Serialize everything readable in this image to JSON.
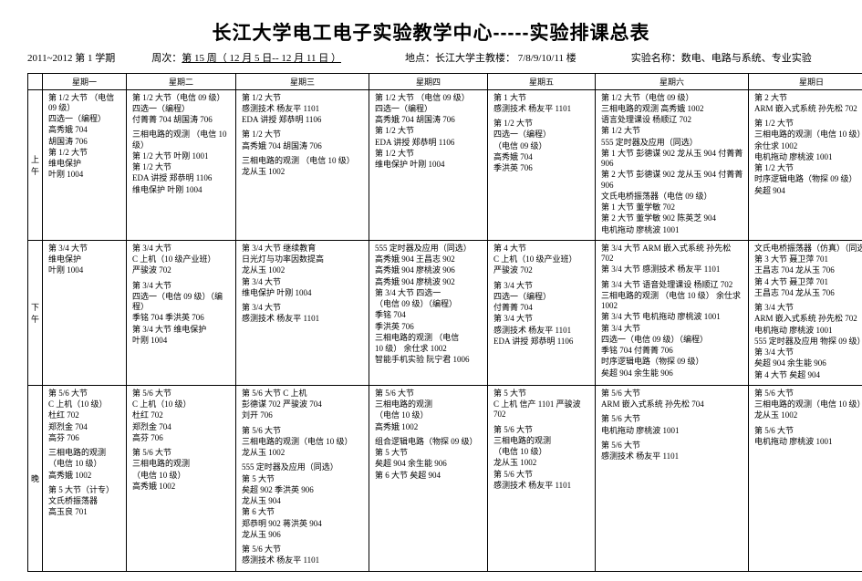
{
  "header": {
    "title": "长江大学电工电子实验教学中心-----实验排课总表",
    "title_fontsize": 21,
    "line2_left": "2011~2012  第 1 学期",
    "line2_week": "周次：",
    "line2_week_val": "第 15 周（ 12 月 5 日--   12 月 11 日 ）",
    "line2_loc_label": "地点：",
    "line2_loc": "长江大学主教楼：  7/8/9/10/11   楼",
    "line2_exp_label": "实验名称：",
    "line2_exp": "数电、电路与系统、专业实验"
  },
  "days": [
    "星期一",
    "星期二",
    "星期三",
    "星期四",
    "星期五",
    "星期六",
    "星期日"
  ],
  "sections": [
    "上午",
    "下午",
    "晚"
  ],
  "grid": [
    [
      [
        [
          "第 1/2 大节  （电信09 级）",
          "四选一（编程）",
          "高秀娥 704",
          "胡国涛 706",
          "第 1/2 大节",
          "维电保护",
          "叶刚 1004"
        ]
      ],
      [
        [
          "第 1/2 大节（电信 09 级）",
          "四选一（编程）",
          "付菁菁 704  胡国涛 706"
        ],
        [
          "三相电路的观测  （电信 10级）",
          "第 1/2 大节  叶刚 1001",
          "第 1/2 大节",
          "EDA 讲授   郑恭明 1106",
          "维电保护 叶刚 1004"
        ]
      ],
      [
        [
          "第 1/2 大节",
          "感测技术 杨友平 1101",
          "EDA 讲授  郑恭明 1106"
        ],
        [
          "第 1/2 大节",
          "高秀娥 704  胡国涛 706"
        ],
        [
          "三相电路的观测  （电信 10 级）",
          "龙从玉 1002"
        ]
      ],
      [
        [
          "第 1/2 大节  （电信 09 级）",
          "四选一（编程）",
          "高秀娥 704  胡国涛 706",
          "第 1/2 大节",
          "EDA 讲授  郑恭明 1106",
          "第 1/2 大节",
          "维电保护   叶刚 1004"
        ]
      ],
      [
        [
          "第 1 大节",
          "感测技术 杨友平 1101"
        ],
        [
          "第 1/2 大节",
          "四选一（编程）",
          "（电信 09 级）",
          "高秀娥 704",
          "季洪英 706"
        ]
      ],
      [
        [
          "第 1/2 大节（电信 09 级）",
          "三相电路的观测 高秀娥 1002",
          "语言处理课设  杨顺辽 702",
          "第 1/2 大节",
          "555 定时器及应用（同选）",
          "第 1 大节 彭德谋 902  龙从玉 904  付菁菁 906",
          "第 2 大节 彭德谋 902  龙从玉 904  付菁菁 906",
          "文氏电桥振荡器（电信 09 级）",
          "第 1 大节    董学敏 702",
          "第 2 大节    董学敏 902    陈英芝 904",
          "电机拖动 廖桃波  1001"
        ]
      ],
      [
        [
          "第 2 大节",
          "ARM 嵌入式系统    孙先松 702"
        ],
        [
          "第 1/2 大节",
          "三相电路的观测（电信 10 级）",
          "余仕求 1002",
          "电机拖动 廖桃波 1001",
          "第 1/2 大节",
          "时序逻辑电路（物探 09 级）",
          "矣超 904"
        ]
      ]
    ],
    [
      [
        [
          "第 3/4 大节",
          "维电保护",
          "叶刚 1004"
        ]
      ],
      [
        [
          "第 3/4 大节",
          "C 上机（10 级产业班）",
          "严骏波 702"
        ],
        [
          "第 3/4 大节",
          "四选一（电信 09 级）（编程）",
          "季铭 704 季洪英 706",
          "第 3/4 大节 维电保护",
          "叶刚 1004"
        ]
      ],
      [
        [
          "第 3/4 大节 继续教育",
          "日光灯与功率因数提高",
          "龙从玉 1002",
          "第 3/4 大节",
          "维电保护  叶刚 1004"
        ],
        [
          "第 3/4 大节",
          "感测技术  杨友平 1101"
        ]
      ],
      [
        [
          "555 定时器及应用（同选）",
          "高秀娥 904 王昌志 902",
          "高秀娥 904 廖桃波 906",
          "高秀娥 904 廖桃波 902",
          "第 3/4 大节  四选一",
          "（电信 09 级）（编程）",
          "季铭 704",
          "季洪英 706",
          "三相电路的观测  （电信",
          "10 级） 余仕求 1002",
          "智能手机实验  阮宁君 1006"
        ]
      ],
      [
        [
          "第 4 大节",
          "C 上机（10 级产业班）",
          "严骏波 702"
        ],
        [
          "第 3/4 大节",
          "四选一（编程）",
          "付菁菁 704",
          "第 3/4 大节",
          "感测技术 杨友平 1101",
          "EDA 讲授   郑恭明 1106"
        ]
      ],
      [
        [
          "第 3/4 大节 ARM 嵌入式系统     孙先松 702",
          "第 3/4 大节  感测技术 杨友平 1101"
        ],
        [
          "第 3/4 大节 语音处理课设 杨顺辽   702",
          "三相电路的观测  （电信 10 级）  余仕求 1002",
          "第 3/4 大节    电机拖动 廖桃波  1001",
          "第 3/4 大节",
          "四选一（电信 09 级）（编程）",
          "季铭 704  付菁菁 706",
          "时序逻辑电路（物探 09 级）",
          "矣超 904  余生能 906"
        ]
      ],
      [
        [
          "文氏电桥振荡器（仿真）（同选）",
          "第 3 大节    聂卫萍 701",
          "王昌志 704  龙从玉 706",
          "第 4 大节    聂卫萍 701",
          "王昌志 704  龙从玉 706"
        ],
        [
          "第 3/4 大节",
          "ARM 嵌入式系统  孙先松 702",
          "电机拖动 廖桃波 1001",
          "555 定时器及应用 物探 09 级）",
          "第 3/4 大节",
          "矣超 904  余生能  906",
          "第 4 大节   矣超 904"
        ]
      ]
    ],
    [
      [
        [
          "第 5/6 大节",
          "C 上机（10 级）",
          "杜红 702",
          "郑烈金 704",
          "高芬 706"
        ],
        [
          "三相电路的观测",
          "（电信 10 级）",
          "高秀娥 1002"
        ],
        [
          "第 5 大节（计专）",
          "文氏桥振荡器",
          "高玉良 701"
        ]
      ],
      [
        [
          "第 5/6 大节",
          "C 上机（10 级）",
          "杜红 702",
          "郑烈金 704",
          "高芬 706"
        ],
        [
          "第 5/6 大节",
          "三相电路的观测",
          "  （电信 10 级）",
          "高秀娥 1002"
        ]
      ],
      [
        [
          "第 5/6 大节 C 上机",
          "彭德谋 702 严骏波 704",
          "刘开 706"
        ],
        [
          "第 5/6 大节",
          "三相电路的观测（电信 10 级）",
          "龙从玉 1002"
        ],
        [
          "555 定时器及应用（同选）",
          "第 5 大节",
          "矣超 902 季洪英 906",
          "龙从玉 904",
          "第 6 大节",
          "郑恭明 902 蒋洪英 904",
          "龙从玉 906"
        ],
        [
          "第 5/6 大节",
          "感测技术  杨友平 1101"
        ]
      ],
      [
        [
          "第 5/6 大节",
          "三相电路的观测",
          "  （电信 10 级）",
          "高秀娥 1002"
        ],
        [
          "组合逻辑电路（物探 09 级）",
          "第 5 大节",
          "矣超 904  余生能 906",
          "第 6 大节   矣超 904"
        ]
      ],
      [
        [
          "第 5 大节",
          "C 上机 信产 1101  严骏波 702"
        ],
        [
          "第 5/6 大节",
          "三相电路的观测",
          "  （电信 10 级）",
          "龙从玉 1002",
          "第 5/6 大节",
          "感测技术 杨友平 1101"
        ]
      ],
      [
        [
          "第 5/6 大节",
          "ARM 嵌入式系统  孙先松 704"
        ],
        [
          "第 5/6 大节",
          "电机拖动 廖桃波  1001"
        ],
        [
          "第 5/6 大节",
          "感测技术 杨友平 1101"
        ]
      ],
      [
        [
          "第 5/6 大节",
          "三相电路的观测（电信 10 级）",
          "龙从玉 1002"
        ],
        [
          "第 5/6 大节",
          "电机拖动 廖桃波  1001"
        ]
      ]
    ]
  ]
}
